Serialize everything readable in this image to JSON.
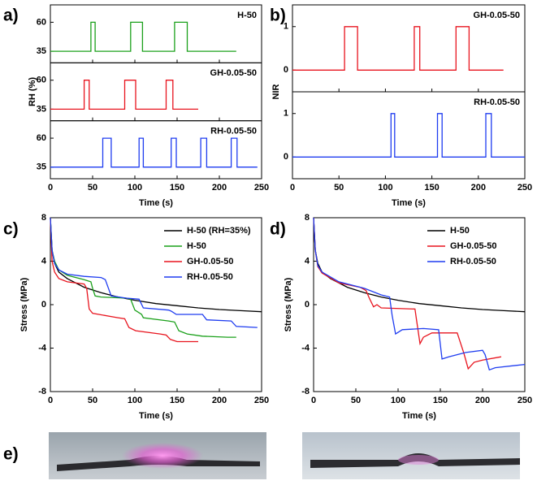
{
  "chart_data": [
    {
      "type": "line",
      "panel_label": "a)",
      "xlabel": "Time (s)",
      "ylabel": "RH (%)",
      "subplots": true,
      "xlim": [
        0,
        250
      ],
      "xticks": [
        0,
        50,
        100,
        150,
        200,
        250
      ],
      "ylim": [
        25,
        75
      ],
      "yticks": [
        35,
        60
      ],
      "series": [
        {
          "name": "H-50",
          "color": "#1aa01a",
          "x": [
            0,
            48,
            48,
            53,
            53,
            95,
            95,
            109,
            109,
            147,
            147,
            162,
            162,
            220
          ],
          "values": [
            35,
            35,
            60,
            60,
            35,
            35,
            60,
            60,
            35,
            35,
            60,
            60,
            35,
            35
          ]
        },
        {
          "name": "GH-0.05-50",
          "color": "#e8141e",
          "x": [
            0,
            40,
            40,
            46,
            46,
            88,
            88,
            101,
            101,
            137,
            137,
            145,
            145,
            175
          ],
          "values": [
            35,
            35,
            60,
            60,
            35,
            35,
            60,
            60,
            35,
            35,
            60,
            60,
            35,
            35
          ]
        },
        {
          "name": "RH-0.05-50",
          "color": "#1e3cf0",
          "x": [
            0,
            62,
            62,
            72,
            72,
            105,
            105,
            110,
            110,
            143,
            143,
            149,
            149,
            178,
            178,
            185,
            185,
            214,
            214,
            221,
            221,
            245
          ],
          "values": [
            35,
            35,
            60,
            60,
            35,
            35,
            60,
            60,
            35,
            35,
            60,
            60,
            35,
            35,
            60,
            60,
            35,
            35,
            60,
            60,
            35,
            35
          ]
        }
      ]
    },
    {
      "type": "line",
      "panel_label": "b)",
      "xlabel": "Time (s)",
      "ylabel": "NIR",
      "subplots": true,
      "xlim": [
        0,
        250
      ],
      "xticks": [
        0,
        50,
        100,
        150,
        200,
        250
      ],
      "ylim": [
        -0.5,
        1.5
      ],
      "yticks": [
        0,
        1
      ],
      "series": [
        {
          "name": "GH-0.05-50",
          "color": "#e8141e",
          "x": [
            0,
            56,
            56,
            70,
            70,
            131,
            131,
            137,
            137,
            176,
            176,
            190,
            190,
            227
          ],
          "values": [
            0,
            0,
            1,
            1,
            0,
            0,
            1,
            1,
            0,
            0,
            1,
            1,
            0,
            0
          ]
        },
        {
          "name": "RH-0.05-50",
          "color": "#1e3cf0",
          "x": [
            0,
            106,
            106,
            110,
            110,
            156,
            156,
            161,
            161,
            208,
            208,
            214,
            214,
            250
          ],
          "values": [
            0,
            0,
            1,
            1,
            0,
            0,
            1,
            1,
            0,
            0,
            1,
            1,
            0,
            0
          ]
        }
      ]
    },
    {
      "type": "line",
      "panel_label": "c)",
      "xlabel": "Time (s)",
      "ylabel": "Stress (MPa)",
      "subplots": false,
      "legend": "upper right",
      "xlim": [
        0,
        250
      ],
      "xticks": [
        0,
        50,
        100,
        150,
        200,
        250
      ],
      "ylim": [
        -8,
        8
      ],
      "yticks": [
        -8,
        -4,
        0,
        4,
        8
      ],
      "series": [
        {
          "name": "H-50 (RH=35%)",
          "color": "#000000",
          "x": [
            0,
            2,
            5,
            10,
            20,
            40,
            60,
            80,
            100,
            125,
            150,
            175,
            200,
            225,
            250
          ],
          "values": [
            8,
            5,
            3.8,
            3,
            2.4,
            1.6,
            1.1,
            0.7,
            0.4,
            0.1,
            -0.1,
            -0.3,
            -0.45,
            -0.55,
            -0.65
          ]
        },
        {
          "name": "H-50",
          "color": "#1aa01a",
          "x": [
            0,
            2,
            5,
            10,
            20,
            40,
            48,
            50,
            53,
            60,
            90,
            95,
            100,
            108,
            110,
            140,
            147,
            152,
            162,
            180,
            210,
            220
          ],
          "values": [
            8,
            5,
            4,
            3.2,
            2.7,
            2.3,
            2.1,
            1.5,
            0.8,
            0.7,
            0.6,
            0.5,
            -0.5,
            -0.9,
            -1.2,
            -1.5,
            -1.6,
            -2.4,
            -2.7,
            -2.9,
            -3,
            -3
          ]
        },
        {
          "name": "GH-0.05-50",
          "color": "#e8141e",
          "x": [
            0,
            2,
            5,
            10,
            20,
            40,
            43,
            46,
            50,
            80,
            88,
            93,
            101,
            130,
            137,
            142,
            150,
            175
          ],
          "values": [
            8,
            4,
            3,
            2.4,
            2.1,
            1.9,
            1.5,
            -0.4,
            -0.8,
            -1.2,
            -1.3,
            -2.1,
            -2.4,
            -2.7,
            -2.8,
            -3.2,
            -3.4,
            -3.4
          ]
        },
        {
          "name": "RH-0.05-50",
          "color": "#1e3cf0",
          "x": [
            0,
            2,
            5,
            10,
            20,
            40,
            60,
            65,
            72,
            90,
            105,
            110,
            140,
            143,
            149,
            180,
            185,
            214,
            220,
            245
          ],
          "values": [
            8,
            5,
            3.8,
            3.2,
            2.8,
            2.6,
            2.5,
            2.3,
            0.8,
            0.6,
            0.5,
            -0.3,
            -0.5,
            -0.6,
            -0.9,
            -0.9,
            -1.4,
            -1.5,
            -2,
            -2.1
          ]
        }
      ]
    },
    {
      "type": "line",
      "panel_label": "d)",
      "xlabel": "Time (s)",
      "ylabel": "Stress (MPa)",
      "subplots": false,
      "legend": "upper right",
      "xlim": [
        0,
        250
      ],
      "xticks": [
        0,
        50,
        100,
        150,
        200,
        250
      ],
      "ylim": [
        -8,
        8
      ],
      "yticks": [
        -8,
        -4,
        0,
        4,
        8
      ],
      "series": [
        {
          "name": "H-50",
          "color": "#000000",
          "x": [
            0,
            2,
            5,
            10,
            20,
            40,
            60,
            80,
            100,
            125,
            150,
            175,
            200,
            225,
            250
          ],
          "values": [
            8,
            5,
            3.8,
            3,
            2.4,
            1.6,
            1.1,
            0.7,
            0.4,
            0.1,
            -0.1,
            -0.3,
            -0.45,
            -0.55,
            -0.65
          ]
        },
        {
          "name": "GH-0.05-50",
          "color": "#e8141e",
          "x": [
            0,
            2,
            5,
            10,
            30,
            55,
            62,
            66,
            71,
            75,
            80,
            120,
            122,
            126,
            130,
            140,
            170,
            178,
            183,
            190,
            200,
            222
          ],
          "values": [
            8,
            5,
            3.5,
            2.9,
            2,
            1.6,
            1.3,
            0.6,
            -0.2,
            0,
            -0.3,
            -0.4,
            -1.5,
            -3.6,
            -3,
            -2.6,
            -2.6,
            -4.5,
            -5.9,
            -5.3,
            -5.1,
            -4.8
          ]
        },
        {
          "name": "RH-0.05-50",
          "color": "#1e3cf0",
          "x": [
            0,
            2,
            5,
            10,
            30,
            60,
            80,
            90,
            93,
            97,
            105,
            130,
            148,
            152,
            160,
            180,
            200,
            203,
            208,
            215,
            250
          ],
          "values": [
            8,
            5,
            3.6,
            3,
            2.1,
            1.5,
            0.9,
            0.7,
            -1,
            -2.7,
            -2.3,
            -2.2,
            -2.3,
            -5,
            -4.8,
            -4.4,
            -4.2,
            -4.6,
            -6,
            -5.8,
            -5.5
          ]
        }
      ]
    }
  ],
  "panel_e": {
    "panel_label": "e)"
  }
}
